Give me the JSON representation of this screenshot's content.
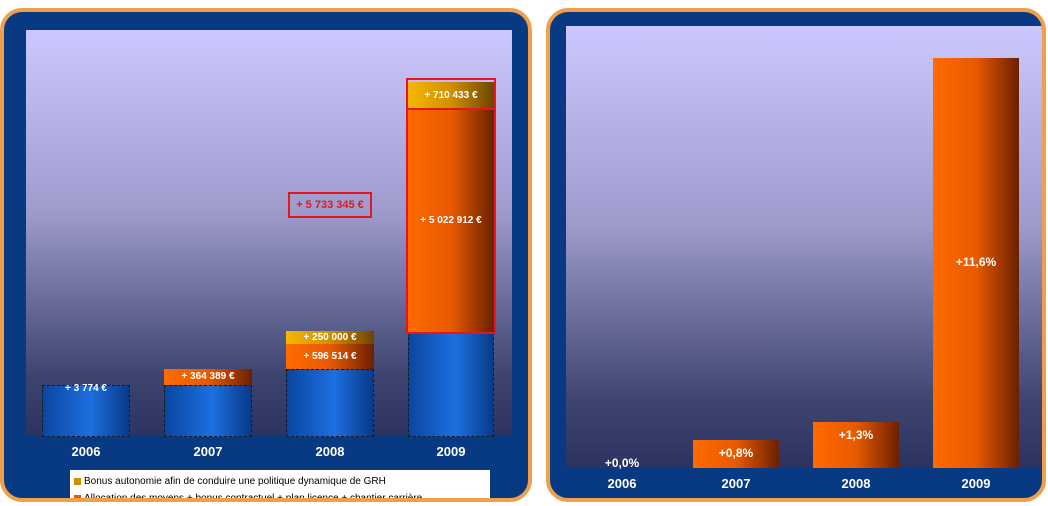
{
  "chart_data": [
    {
      "type": "bar",
      "stacked": true,
      "categories": [
        "2006",
        "2007",
        "2008",
        "2009"
      ],
      "series": [
        {
          "name": "",
          "values": [
            3774,
            3774,
            3774,
            3774
          ],
          "color": "#1d6fe0"
        },
        {
          "name": "Allocation des moyens + bonus contractuel + plan licence + chantier carrière",
          "values": [
            0,
            364389,
            596514,
            5022912
          ],
          "color": "#e85a00"
        },
        {
          "name": "Bonus autonomie afin de conduire une politique dynamique de GRH",
          "values": [
            0,
            0,
            250000,
            710433
          ],
          "color": "#d18f00"
        }
      ],
      "data_labels": {
        "2006": [
          "+ 3 774 €"
        ],
        "2007": [
          "+ 364 389 €"
        ],
        "2008": [
          "+ 596 514 €",
          "+ 250 000 €"
        ],
        "2009": [
          "+ 5 022 912 €",
          "+ 710 433 €"
        ]
      },
      "annotation": "+ 5 733 345 €",
      "legend": [
        {
          "label": "Bonus autonomie afin de conduire une politique dynamique de GRH",
          "color": "#d18f00"
        },
        {
          "label": "Allocation des moyens + bonus contractuel + plan licence + chantier carrière",
          "color": "#e85a00"
        }
      ],
      "legend_position": "bottom",
      "grid": false
    },
    {
      "type": "bar",
      "categories": [
        "2006",
        "2007",
        "2008",
        "2009"
      ],
      "values": [
        0.0,
        0.8,
        1.3,
        11.6
      ],
      "data_labels": [
        "+0,0%",
        "+0,8%",
        "+1,3%",
        "+11,6%"
      ],
      "ylim": [
        0,
        12.5
      ],
      "grid": false
    }
  ]
}
